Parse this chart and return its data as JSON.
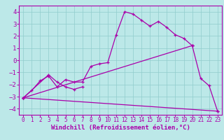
{
  "xlabel": "Windchill (Refroidissement éolien,°C)",
  "xlim": [
    -0.5,
    23.5
  ],
  "ylim": [
    -4.5,
    4.5
  ],
  "xticks": [
    0,
    1,
    2,
    3,
    4,
    5,
    6,
    7,
    8,
    9,
    10,
    11,
    12,
    13,
    14,
    15,
    16,
    17,
    18,
    19,
    20,
    21,
    22,
    23
  ],
  "yticks": [
    -4,
    -3,
    -2,
    -1,
    0,
    1,
    2,
    3,
    4
  ],
  "background_color": "#bce8e8",
  "grid_color": "#90cccc",
  "line_color": "#aa00aa",
  "line1_x": [
    0,
    1,
    2,
    3,
    4,
    5,
    6,
    7,
    8,
    9,
    10,
    11,
    12,
    13,
    14,
    15,
    16,
    17,
    18,
    19,
    20
  ],
  "line1_y": [
    -3.1,
    -2.5,
    -1.7,
    -1.3,
    -2.2,
    -1.6,
    -1.8,
    -1.8,
    -0.5,
    -0.3,
    -0.2,
    2.1,
    4.0,
    3.8,
    3.3,
    2.8,
    3.2,
    2.7,
    2.1,
    1.8,
    1.2
  ],
  "line2_x": [
    0,
    3,
    4,
    5,
    6,
    7
  ],
  "line2_y": [
    -3.1,
    -1.2,
    -1.8,
    -2.2,
    -2.4,
    -2.2
  ],
  "line3_x": [
    0,
    20
  ],
  "line3_y": [
    -3.1,
    1.2
  ],
  "line4_x": [
    0,
    23
  ],
  "line4_y": [
    -3.1,
    -4.2
  ],
  "line5_x": [
    20,
    21,
    22,
    23
  ],
  "line5_y": [
    1.2,
    -1.5,
    -2.1,
    -4.2
  ],
  "font_size_xlabel": 6.5,
  "font_size_ytick": 6.5,
  "font_size_xtick": 5.5
}
